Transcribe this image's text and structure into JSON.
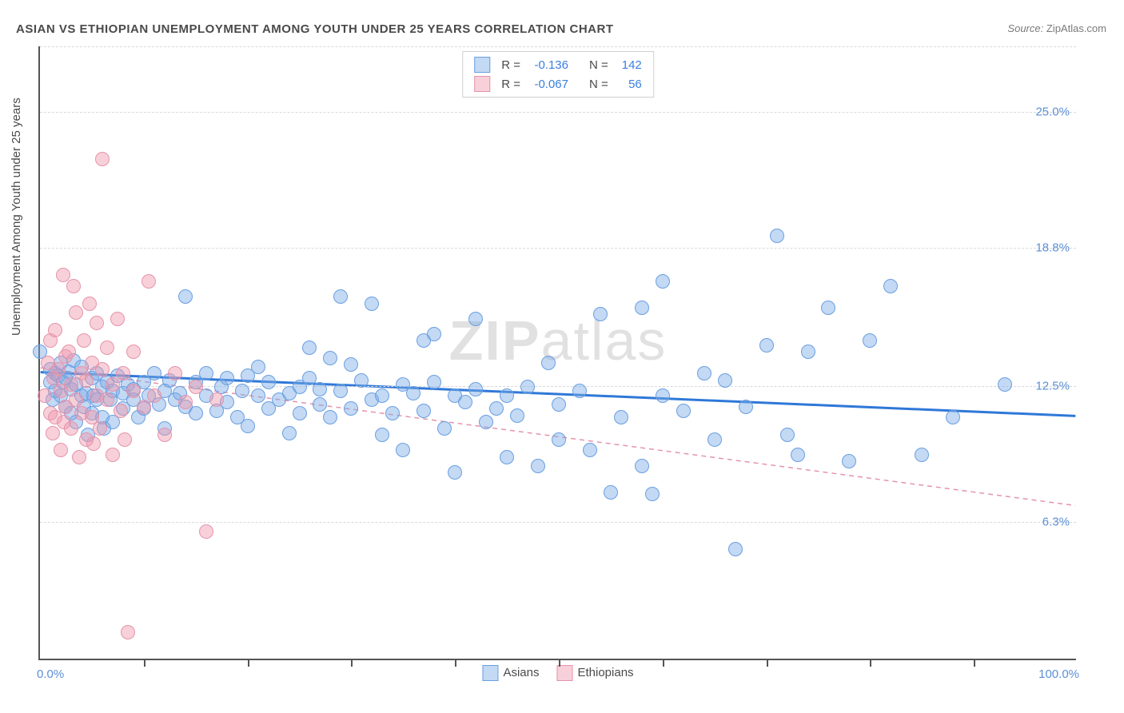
{
  "title": "ASIAN VS ETHIOPIAN UNEMPLOYMENT AMONG YOUTH UNDER 25 YEARS CORRELATION CHART",
  "source_label": "Source:",
  "source_value": "ZipAtlas.com",
  "ylabel": "Unemployment Among Youth under 25 years",
  "watermark_bold": "ZIP",
  "watermark_rest": "atlas",
  "chart": {
    "type": "scatter",
    "xlim": [
      0,
      100
    ],
    "ylim": [
      0,
      28
    ],
    "x_min_label": "0.0%",
    "x_max_label": "100.0%",
    "x_ticks": [
      10,
      20,
      30,
      40,
      50,
      60,
      70,
      80,
      90
    ],
    "y_gridlines": [
      {
        "v": 6.3,
        "label": "6.3%"
      },
      {
        "v": 12.5,
        "label": "12.5%"
      },
      {
        "v": 18.8,
        "label": "18.8%"
      },
      {
        "v": 25.0,
        "label": "25.0%"
      }
    ],
    "grid_color": "#d9d9d9",
    "axis_color": "#545454",
    "background": "#ffffff",
    "series": [
      {
        "name": "Asians",
        "fill": "rgba(122,170,230,0.45)",
        "stroke": "#6b9fe0",
        "marker_radius": 9,
        "trend": {
          "y_at_x0": 13.1,
          "y_at_x100": 11.1,
          "color": "#2f78d8",
          "width": 3,
          "dash": "none"
        },
        "R": "-0.136",
        "N": "142",
        "points": [
          [
            0,
            14.0
          ],
          [
            1,
            12.6
          ],
          [
            1,
            13.2
          ],
          [
            1.2,
            11.8
          ],
          [
            1.5,
            12.2
          ],
          [
            1.5,
            13.0
          ],
          [
            1.8,
            12.9
          ],
          [
            2,
            13.5
          ],
          [
            2,
            12.0
          ],
          [
            2.2,
            12.6
          ],
          [
            2.5,
            11.5
          ],
          [
            2.5,
            12.8
          ],
          [
            2.8,
            13.1
          ],
          [
            3,
            12.3
          ],
          [
            3,
            11.2
          ],
          [
            3.2,
            13.6
          ],
          [
            3.5,
            10.8
          ],
          [
            3.5,
            12.5
          ],
          [
            4,
            12.0
          ],
          [
            4,
            13.3
          ],
          [
            4.2,
            11.5
          ],
          [
            4.5,
            12.1
          ],
          [
            4.6,
            10.2
          ],
          [
            5,
            12.8
          ],
          [
            5,
            11.2
          ],
          [
            5.2,
            12.0
          ],
          [
            5.5,
            13.0
          ],
          [
            5.5,
            11.8
          ],
          [
            6,
            11.0
          ],
          [
            6,
            12.4
          ],
          [
            6.2,
            10.5
          ],
          [
            6.5,
            12.6
          ],
          [
            6.8,
            11.8
          ],
          [
            7,
            12.2
          ],
          [
            7,
            10.8
          ],
          [
            7.5,
            12.9
          ],
          [
            8,
            11.4
          ],
          [
            8,
            12.1
          ],
          [
            8.5,
            12.5
          ],
          [
            9,
            11.8
          ],
          [
            9,
            12.3
          ],
          [
            9.5,
            11.0
          ],
          [
            10,
            12.6
          ],
          [
            10,
            11.4
          ],
          [
            10.5,
            12.0
          ],
          [
            11,
            13.0
          ],
          [
            11.5,
            11.6
          ],
          [
            12,
            12.2
          ],
          [
            12,
            10.5
          ],
          [
            12.5,
            12.7
          ],
          [
            13,
            11.8
          ],
          [
            13.5,
            12.1
          ],
          [
            14,
            16.5
          ],
          [
            14,
            11.5
          ],
          [
            15,
            12.6
          ],
          [
            15,
            11.2
          ],
          [
            16,
            12.0
          ],
          [
            16,
            13.0
          ],
          [
            17,
            11.3
          ],
          [
            17.5,
            12.4
          ],
          [
            18,
            11.7
          ],
          [
            18,
            12.8
          ],
          [
            19,
            11.0
          ],
          [
            19.5,
            12.2
          ],
          [
            20,
            12.9
          ],
          [
            20,
            10.6
          ],
          [
            21,
            12.0
          ],
          [
            21,
            13.3
          ],
          [
            22,
            11.4
          ],
          [
            22,
            12.6
          ],
          [
            23,
            11.8
          ],
          [
            24,
            12.1
          ],
          [
            24,
            10.3
          ],
          [
            25,
            12.4
          ],
          [
            25,
            11.2
          ],
          [
            26,
            12.8
          ],
          [
            26,
            14.2
          ],
          [
            27,
            11.6
          ],
          [
            27,
            12.3
          ],
          [
            28,
            13.7
          ],
          [
            28,
            11.0
          ],
          [
            29,
            16.5
          ],
          [
            29,
            12.2
          ],
          [
            30,
            11.4
          ],
          [
            30,
            13.4
          ],
          [
            31,
            12.7
          ],
          [
            32,
            11.8
          ],
          [
            32,
            16.2
          ],
          [
            33,
            10.2
          ],
          [
            33,
            12.0
          ],
          [
            34,
            11.2
          ],
          [
            35,
            12.5
          ],
          [
            35,
            9.5
          ],
          [
            36,
            12.1
          ],
          [
            37,
            11.3
          ],
          [
            37,
            14.5
          ],
          [
            38,
            12.6
          ],
          [
            38,
            14.8
          ],
          [
            39,
            10.5
          ],
          [
            40,
            12.0
          ],
          [
            40,
            8.5
          ],
          [
            41,
            11.7
          ],
          [
            42,
            12.3
          ],
          [
            42,
            15.5
          ],
          [
            43,
            10.8
          ],
          [
            44,
            11.4
          ],
          [
            45,
            12.0
          ],
          [
            45,
            9.2
          ],
          [
            46,
            11.1
          ],
          [
            47,
            12.4
          ],
          [
            48,
            8.8
          ],
          [
            49,
            13.5
          ],
          [
            50,
            11.6
          ],
          [
            50,
            10.0
          ],
          [
            52,
            12.2
          ],
          [
            53,
            9.5
          ],
          [
            54,
            15.7
          ],
          [
            55,
            7.6
          ],
          [
            56,
            11.0
          ],
          [
            58,
            16.0
          ],
          [
            58,
            8.8
          ],
          [
            59,
            7.5
          ],
          [
            60,
            12.0
          ],
          [
            60,
            17.2
          ],
          [
            62,
            11.3
          ],
          [
            64,
            13.0
          ],
          [
            65,
            10.0
          ],
          [
            66,
            12.7
          ],
          [
            67,
            5.0
          ],
          [
            68,
            11.5
          ],
          [
            70,
            14.3
          ],
          [
            71,
            19.3
          ],
          [
            72,
            10.2
          ],
          [
            73,
            9.3
          ],
          [
            74,
            14.0
          ],
          [
            76,
            16.0
          ],
          [
            78,
            9.0
          ],
          [
            80,
            14.5
          ],
          [
            82,
            17.0
          ],
          [
            85,
            9.3
          ],
          [
            88,
            11.0
          ],
          [
            93,
            12.5
          ]
        ]
      },
      {
        "name": "Ethiopians",
        "fill": "rgba(240,150,170,0.45)",
        "stroke": "#e594ab",
        "marker_radius": 9,
        "trend": {
          "y_at_x0": 13.3,
          "y_at_x100": 7.0,
          "color": "#e594ab",
          "width": 1.5,
          "dash": "6 5"
        },
        "R": "-0.067",
        "N": "56",
        "points": [
          [
            0.5,
            12.0
          ],
          [
            0.8,
            13.5
          ],
          [
            1,
            11.2
          ],
          [
            1,
            14.5
          ],
          [
            1.2,
            10.3
          ],
          [
            1.3,
            12.8
          ],
          [
            1.5,
            15.0
          ],
          [
            1.5,
            11.0
          ],
          [
            1.8,
            13.2
          ],
          [
            2,
            9.5
          ],
          [
            2,
            12.2
          ],
          [
            2.2,
            17.5
          ],
          [
            2.3,
            10.8
          ],
          [
            2.5,
            13.8
          ],
          [
            2.5,
            11.5
          ],
          [
            2.8,
            14.0
          ],
          [
            3,
            10.5
          ],
          [
            3,
            12.5
          ],
          [
            3.2,
            17.0
          ],
          [
            3.5,
            11.8
          ],
          [
            3.5,
            15.8
          ],
          [
            3.8,
            9.2
          ],
          [
            4,
            13.0
          ],
          [
            4,
            11.2
          ],
          [
            4.2,
            14.5
          ],
          [
            4.5,
            10.0
          ],
          [
            4.5,
            12.7
          ],
          [
            4.8,
            16.2
          ],
          [
            5,
            11.0
          ],
          [
            5,
            13.5
          ],
          [
            5.2,
            9.8
          ],
          [
            5.5,
            15.3
          ],
          [
            5.5,
            12.0
          ],
          [
            5.8,
            10.5
          ],
          [
            6,
            13.2
          ],
          [
            6,
            22.8
          ],
          [
            6.5,
            11.8
          ],
          [
            6.5,
            14.2
          ],
          [
            7,
            9.3
          ],
          [
            7,
            12.5
          ],
          [
            7.5,
            15.5
          ],
          [
            7.8,
            11.3
          ],
          [
            8,
            13.0
          ],
          [
            8.2,
            10.0
          ],
          [
            8.5,
            1.2
          ],
          [
            9,
            12.2
          ],
          [
            9,
            14.0
          ],
          [
            10,
            11.5
          ],
          [
            10.5,
            17.2
          ],
          [
            11,
            12.0
          ],
          [
            12,
            10.2
          ],
          [
            13,
            13.0
          ],
          [
            14,
            11.7
          ],
          [
            15,
            12.4
          ],
          [
            16,
            5.8
          ],
          [
            17,
            11.8
          ]
        ]
      }
    ],
    "legend_R_label": "R =",
    "legend_N_label": "N ="
  }
}
